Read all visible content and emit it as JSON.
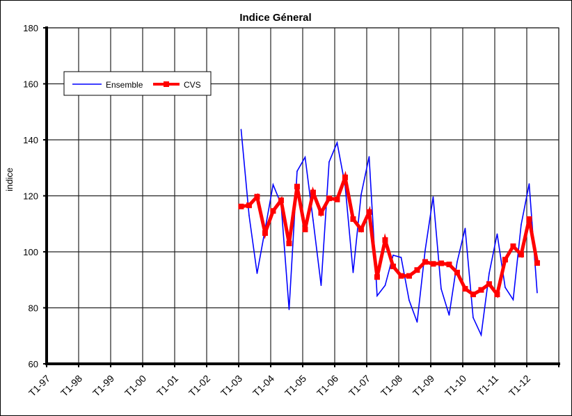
{
  "chart_data": {
    "type": "line",
    "title": "Indice Géneral",
    "xlabel": "",
    "ylabel": "indice",
    "ylim": [
      60,
      180
    ],
    "yticks": [
      60,
      80,
      100,
      120,
      140,
      160,
      180
    ],
    "xticks": [
      "T1-97",
      "T1-98",
      "T1-99",
      "T1-00",
      "T1-01",
      "T1-02",
      "T1-03",
      "T1-04",
      "T1-05",
      "T1-06",
      "T1-07",
      "T1-08",
      "T1-09",
      "T1-10",
      "T1-11",
      "T1-12"
    ],
    "x_start_year": 1997,
    "x_end_year": 2013,
    "grid": true,
    "legend_position": "top-left",
    "x": [
      "T1-03",
      "T2-03",
      "T3-03",
      "T4-03",
      "T1-04",
      "T2-04",
      "T3-04",
      "T4-04",
      "T1-05",
      "T2-05",
      "T3-05",
      "T4-05",
      "T1-06",
      "T2-06",
      "T3-06",
      "T4-06",
      "T1-07",
      "T2-07",
      "T3-07",
      "T4-07",
      "T1-08",
      "T2-08",
      "T3-08",
      "T4-08",
      "T1-09",
      "T2-09",
      "T3-09",
      "T4-09",
      "T1-10",
      "T2-10",
      "T3-10",
      "T4-10",
      "T1-11",
      "T2-11",
      "T3-11",
      "T4-11",
      "T1-12",
      "T2-12"
    ],
    "series": [
      {
        "name": "Ensemble",
        "color": "#0000ff",
        "values": [
          143.7,
          113,
          92.3,
          108,
          124,
          117,
          79.4,
          128.8,
          133.8,
          111.3,
          88,
          132.1,
          139,
          123.7,
          92.6,
          120.4,
          134,
          84.3,
          88,
          98.8,
          98,
          82.7,
          74.9,
          100.5,
          119.6,
          86.8,
          77.4,
          96.4,
          108.4,
          76.5,
          70.3,
          92.3,
          106.4,
          87.3,
          82.9,
          109.7,
          124.3,
          85.4
        ]
      },
      {
        "name": "CVS",
        "color": "#ff0000",
        "values": [
          116.2,
          116.6,
          119.7,
          106.7,
          114.6,
          118.4,
          103,
          123.3,
          108,
          121.2,
          113.9,
          119.1,
          118.7,
          126.6,
          111.7,
          108,
          114.2,
          91,
          104.2,
          94.8,
          91.4,
          91.4,
          93.5,
          96.4,
          95.7,
          95.9,
          95.5,
          92.6,
          86.8,
          84.8,
          86.4,
          88.5,
          84.8,
          97.2,
          102,
          99,
          111.7,
          96
        ]
      }
    ]
  }
}
